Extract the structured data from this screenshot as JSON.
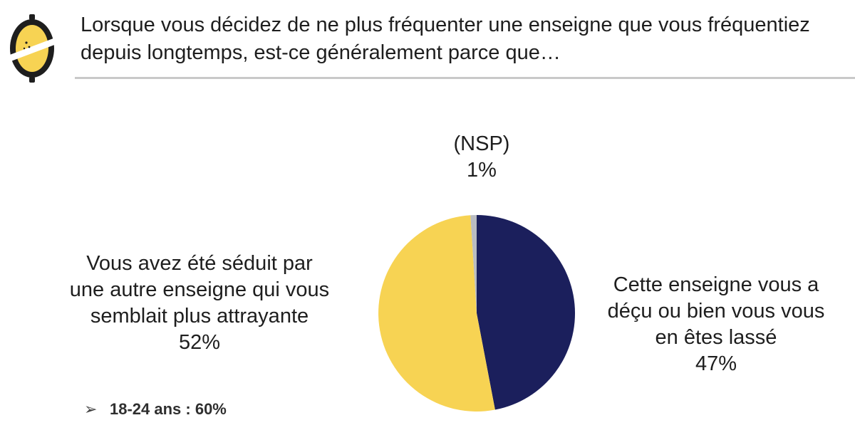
{
  "question": {
    "line1": "Lorsque vous décidez de ne plus fréquenter une enseigne que vous fréquentiez",
    "line2": "depuis longtemps, est-ce généralement parce que…"
  },
  "chart_data": {
    "type": "pie",
    "start": "top, clockwise",
    "slices": [
      {
        "label": "Cette enseigne vous a déçu ou bien vous vous en êtes lassé",
        "label_lines": [
          "Cette enseigne vous a",
          "déçu ou bien vous vous",
          "en êtes lassé"
        ],
        "value": 47,
        "value_label": "47%",
        "color": "#1b1f5c"
      },
      {
        "label": "Vous avez été séduit par une autre enseigne qui vous semblait plus attrayante",
        "label_lines": [
          "Vous avez été séduit par",
          "une autre enseigne qui vous",
          "semblait plus attrayante"
        ],
        "value": 52,
        "value_label": "52%",
        "color": "#f7d353"
      },
      {
        "label": "(NSP)",
        "label_lines": [
          "(NSP)"
        ],
        "value": 1,
        "value_label": "1%",
        "color": "#b9bcc2"
      }
    ]
  },
  "note": {
    "text": "18-24 ans : 60%",
    "icon": "arrowhead-bullet-icon"
  },
  "logo": {
    "icon": "lemon-logo-icon",
    "colors": {
      "fill": "#f7d353",
      "outline": "#1e1e1e"
    }
  },
  "colors": {
    "rule": "#c9c9c9",
    "text": "#1e1e1e"
  }
}
